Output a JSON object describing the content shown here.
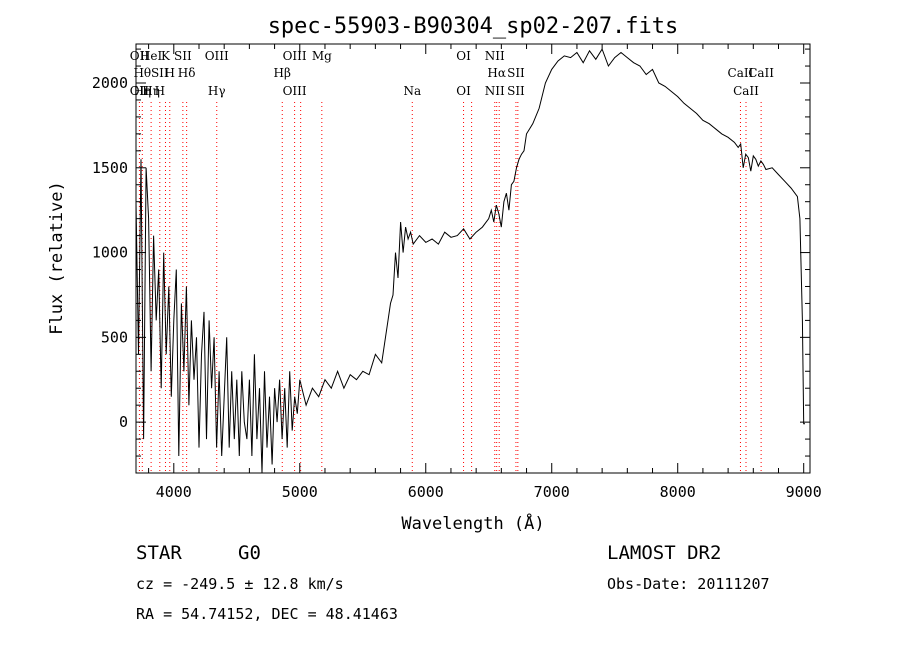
{
  "chart_data": {
    "type": "line",
    "title": "spec-55903-B90304_sp02-207.fits",
    "xlabel": "Wavelength (Å)",
    "ylabel": "Flux (relative)",
    "xlim": [
      3700,
      9050
    ],
    "ylim": [
      -300,
      2230
    ],
    "x_ticks": [
      4000,
      5000,
      6000,
      7000,
      8000,
      9000
    ],
    "y_ticks": [
      0,
      500,
      1000,
      1500,
      2000
    ],
    "grid": false,
    "line_color": "#000000",
    "marker_color": "#ff0000",
    "series": [
      {
        "x": [
          3700,
          3720,
          3740,
          3760,
          3780,
          3800,
          3820,
          3840,
          3860,
          3880,
          3900,
          3920,
          3940,
          3960,
          3980,
          4000,
          4020,
          4040,
          4060,
          4080,
          4100,
          4120,
          4140,
          4160,
          4180,
          4200,
          4220,
          4240,
          4260,
          4280,
          4300,
          4320,
          4340,
          4360,
          4380,
          4400,
          4420,
          4440,
          4460,
          4480,
          4500,
          4520,
          4540,
          4560,
          4580,
          4600,
          4620,
          4640,
          4660,
          4680,
          4700,
          4720,
          4740,
          4760,
          4780,
          4800,
          4820,
          4840,
          4860,
          4880,
          4900,
          4920,
          4940,
          4960,
          4980,
          5000,
          5050,
          5100,
          5150,
          5200,
          5250,
          5300,
          5350,
          5400,
          5450,
          5500,
          5550,
          5600,
          5650,
          5700,
          5720,
          5740,
          5760,
          5780,
          5800,
          5820,
          5840,
          5860,
          5880,
          5900,
          5950,
          6000,
          6050,
          6100,
          6150,
          6200,
          6250,
          6300,
          6350,
          6400,
          6450,
          6500,
          6520,
          6540,
          6560,
          6580,
          6600,
          6620,
          6640,
          6660,
          6680,
          6700,
          6720,
          6740,
          6760,
          6780,
          6800,
          6850,
          6900,
          6950,
          7000,
          7050,
          7100,
          7150,
          7200,
          7250,
          7300,
          7350,
          7400,
          7450,
          7500,
          7550,
          7600,
          7650,
          7700,
          7750,
          7800,
          7850,
          7900,
          7950,
          8000,
          8050,
          8100,
          8150,
          8200,
          8250,
          8300,
          8350,
          8400,
          8450,
          8480,
          8500,
          8520,
          8540,
          8560,
          8580,
          8600,
          8620,
          8640,
          8660,
          8680,
          8700,
          8750,
          8800,
          8850,
          8900,
          8950,
          8970,
          8990,
          9000,
          9010
        ],
        "y": [
          1300,
          400,
          1550,
          -100,
          1500,
          1200,
          300,
          1100,
          600,
          900,
          200,
          1000,
          400,
          800,
          150,
          600,
          900,
          -200,
          700,
          300,
          800,
          100,
          600,
          250,
          500,
          -150,
          400,
          650,
          -100,
          600,
          200,
          500,
          -150,
          300,
          -200,
          150,
          500,
          -150,
          300,
          -100,
          250,
          -200,
          300,
          0,
          -100,
          250,
          -200,
          400,
          -100,
          200,
          -300,
          300,
          -150,
          150,
          -250,
          200,
          0,
          250,
          -100,
          200,
          -150,
          300,
          -50,
          150,
          50,
          250,
          100,
          200,
          150,
          250,
          200,
          300,
          200,
          280,
          250,
          300,
          280,
          400,
          350,
          600,
          700,
          750,
          1000,
          850,
          1180,
          1000,
          1150,
          1080,
          1120,
          1050,
          1100,
          1060,
          1080,
          1050,
          1120,
          1090,
          1100,
          1140,
          1080,
          1120,
          1150,
          1200,
          1250,
          1180,
          1280,
          1230,
          1150,
          1300,
          1350,
          1250,
          1400,
          1420,
          1500,
          1550,
          1580,
          1600,
          1700,
          1760,
          1850,
          2000,
          2080,
          2130,
          2160,
          2150,
          2180,
          2120,
          2190,
          2140,
          2200,
          2100,
          2150,
          2180,
          2150,
          2120,
          2100,
          2050,
          2080,
          2000,
          1980,
          1950,
          1920,
          1880,
          1850,
          1820,
          1780,
          1760,
          1730,
          1700,
          1680,
          1650,
          1620,
          1640,
          1500,
          1580,
          1560,
          1480,
          1570,
          1550,
          1510,
          1540,
          1520,
          1490,
          1500,
          1460,
          1420,
          1380,
          1330,
          1200,
          600,
          -10,
          -10
        ]
      }
    ],
    "spectral_lines": [
      {
        "wavelength": 3727,
        "top": "OII",
        "bottom": "OII"
      },
      {
        "wavelength": 3750,
        "top": "Hθ",
        "bottom": "Hη"
      },
      {
        "wavelength": 3820,
        "top": "HeI",
        "bottom": "Hη"
      },
      {
        "wavelength": 3889,
        "top": "SII",
        "bottom": "H"
      },
      {
        "wavelength": 3934,
        "top": "K"
      },
      {
        "wavelength": 3968,
        "top": "H"
      },
      {
        "wavelength": 4072,
        "top": "SII"
      },
      {
        "wavelength": 4102,
        "top": "Hδ"
      },
      {
        "wavelength": 4341,
        "top": "OIII",
        "bottom": "Hγ"
      },
      {
        "wavelength": 4861,
        "top": "Hβ"
      },
      {
        "wavelength": 4959,
        "top": "OIII",
        "bottom": "OIII"
      },
      {
        "wavelength": 5007,
        "top": ""
      },
      {
        "wavelength": 5175,
        "top": "Mg"
      },
      {
        "wavelength": 5893,
        "bottom": "Na"
      },
      {
        "wavelength": 6300,
        "top": "OI",
        "bottom": "OI"
      },
      {
        "wavelength": 6364,
        "top": ""
      },
      {
        "wavelength": 6548,
        "top": "NII",
        "bottom": "NII"
      },
      {
        "wavelength": 6563,
        "top": "Hα"
      },
      {
        "wavelength": 6583,
        "top": ""
      },
      {
        "wavelength": 6716,
        "top": "SII",
        "bottom": "SII"
      },
      {
        "wavelength": 6731,
        "top": ""
      },
      {
        "wavelength": 8498,
        "top": "CaII"
      },
      {
        "wavelength": 8542,
        "bottom": "CaII"
      },
      {
        "wavelength": 8662,
        "top": "CaII"
      }
    ]
  },
  "info": {
    "class_label": "STAR",
    "subclass": "G0",
    "survey": "LAMOST DR2",
    "cz": "cz = -249.5 ± 12.8 km/s",
    "obs_date": "Obs-Date: 20111207",
    "radec": "RA =  54.74152, DEC =  48.41463"
  }
}
